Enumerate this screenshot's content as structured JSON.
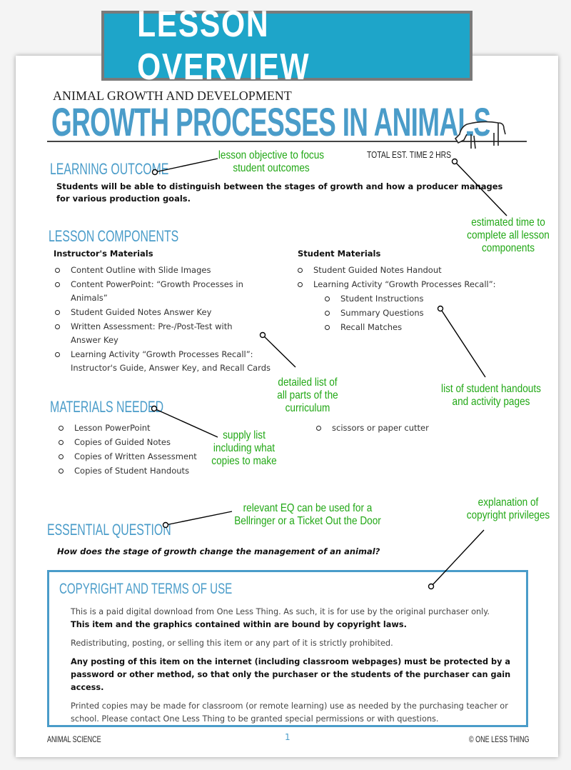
{
  "banner": {
    "label": "LESSON OVERVIEW",
    "color": "#1ea5c9"
  },
  "header": {
    "subtitle": "ANIMAL GROWTH AND DEVELOPMENT",
    "title": "GROWTH PROCESSES IN ANIMALS",
    "time": "TOTAL EST. TIME 2 HRS",
    "icon": "grazing-cow-icon"
  },
  "learning": {
    "heading": "LEARNING OUTCOME",
    "text": "Students will be able to distinguish between the stages of growth and how a producer manages for various production goals."
  },
  "components": {
    "heading": "LESSON COMPONENTS",
    "instructor": {
      "heading": "Instructor's Materials",
      "items": [
        "Content Outline with Slide Images",
        "Content PowerPoint: “Growth Processes in Animals”",
        "Student Guided Notes Answer Key",
        "Written Assessment: Pre-/Post-Test with Answer Key",
        "Learning Activity “Growth Processes Recall”: Instructor's Guide, Answer Key, and Recall Cards"
      ]
    },
    "student": {
      "heading": "Student Materials",
      "items": [
        "Student Guided Notes Handout",
        "Learning Activity “Growth Processes Recall”:"
      ],
      "subitems": [
        "Student Instructions",
        "Summary Questions",
        "Recall Matches"
      ]
    }
  },
  "materials": {
    "heading": "MATERIALS NEEDED",
    "items": [
      "Lesson PowerPoint",
      "Copies of Guided Notes",
      "Copies of Written Assessment",
      "Copies of Student Handouts"
    ],
    "items2": [
      "scissors or paper cutter"
    ]
  },
  "essential": {
    "heading": "ESSENTIAL QUESTION",
    "text": "How does the stage of growth change the management of an animal?"
  },
  "copyright": {
    "heading": "COPYRIGHT AND TERMS OF USE",
    "p1": "This is a paid digital download from One Less Thing. As such, it is for use by the original purchaser only.",
    "p1b": "This item and the graphics contained within are bound by copyright laws.",
    "p2": "Redistributing, posting, or selling this item or any part of it is strictly prohibited.",
    "p3": "Any posting of this item on the internet (including classroom webpages) must be protected by a password or other method, so that only the purchaser or the students of the purchaser can gain access.",
    "p4": "Printed copies may be made for classroom (or remote learning) use as needed by the purchasing teacher or school. Please contact One Less Thing to be granted special permissions or with questions."
  },
  "footer": {
    "left": "ANIMAL SCIENCE",
    "page": "1",
    "right": "© ONE LESS THING"
  },
  "annotations": {
    "objective": [
      "lesson objective to focus",
      "student  outcomes"
    ],
    "time": [
      "estimated time to",
      "complete all lesson",
      "components"
    ],
    "detailed": [
      "detailed list of",
      "all parts of the",
      "curriculum"
    ],
    "handouts": [
      "list of student handouts",
      "and activity pages"
    ],
    "supply": [
      "supply list",
      "including what",
      "copies to make"
    ],
    "eq": [
      "relevant EQ can be used for a",
      "Bellringer or a Ticket Out the Door"
    ],
    "copyright": [
      "explanation of",
      "copyright privileges"
    ]
  }
}
